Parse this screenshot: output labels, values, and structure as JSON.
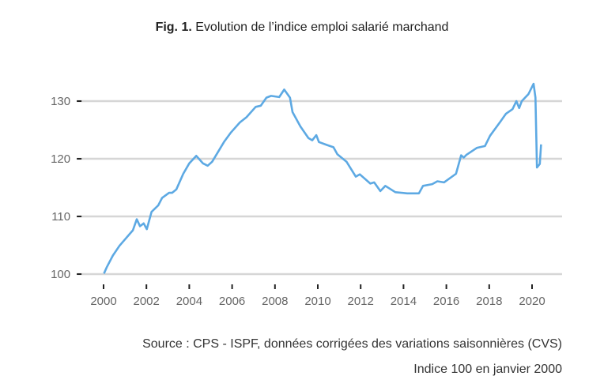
{
  "title": {
    "prefix": "Fig. 1.",
    "text": " Evolution de l’indice emploi salarié marchand"
  },
  "source": "Source : CPS - ISPF, données corrigées des variations saisonnières (CVS)",
  "note": "Indice 100 en janvier 2000",
  "chart_data": {
    "type": "line",
    "title": "Evolution de l’indice emploi salarié marchand",
    "xlabel": "",
    "ylabel": "",
    "xlim": [
      1998.75,
      2021.4
    ],
    "ylim": [
      100,
      134
    ],
    "grid": true,
    "line_color": "#5DA9E3",
    "x_ticks": [
      "2000",
      "2002",
      "2004",
      "2006",
      "2008",
      "2010",
      "2012",
      "2014",
      "2016",
      "2018",
      "2020"
    ],
    "y_ticks": [
      "100",
      "110",
      "120",
      "130"
    ],
    "series": [
      {
        "x": [
          2000.02,
          2000.15,
          2000.43,
          2000.74,
          2000.95,
          2001.37,
          2001.55,
          2001.7,
          2001.87,
          2002.02,
          2002.24,
          2002.55,
          2002.73,
          2003.06,
          2003.2,
          2003.4,
          2003.72,
          2004.0,
          2004.33,
          2004.64,
          2004.86,
          2005.07,
          2005.62,
          2005.93,
          2006.36,
          2006.67,
          2007.1,
          2007.34,
          2007.6,
          2007.82,
          2008.2,
          2008.43,
          2008.7,
          2008.82,
          2009.19,
          2009.56,
          2009.74,
          2009.93,
          2010.05,
          2010.42,
          2010.73,
          2010.91,
          2011.34,
          2011.77,
          2011.96,
          2012.45,
          2012.63,
          2012.92,
          2013.15,
          2013.62,
          2014.17,
          2014.72,
          2014.91,
          2015.34,
          2015.58,
          2015.89,
          2016.45,
          2016.69,
          2016.81,
          2016.94,
          2017.43,
          2017.8,
          2018.04,
          2018.53,
          2018.78,
          2019.09,
          2019.27,
          2019.4,
          2019.52,
          2019.83,
          2020.07,
          2020.16,
          2020.23,
          2020.36,
          2020.42
        ],
        "y": [
          100.1,
          101.2,
          103.2,
          104.9,
          105.8,
          107.6,
          109.5,
          108.3,
          108.8,
          107.8,
          110.8,
          111.9,
          113.2,
          114.1,
          114.1,
          114.7,
          117.4,
          119.2,
          120.5,
          119.2,
          118.8,
          119.5,
          122.9,
          124.5,
          126.3,
          127.2,
          129.0,
          129.2,
          130.6,
          130.9,
          130.7,
          132.0,
          130.6,
          128.1,
          125.6,
          123.6,
          123.2,
          124.1,
          122.9,
          122.4,
          122.0,
          120.8,
          119.5,
          116.9,
          117.3,
          115.7,
          115.9,
          114.4,
          115.3,
          114.2,
          114.0,
          114.0,
          115.3,
          115.6,
          116.1,
          115.9,
          117.4,
          120.6,
          120.2,
          120.7,
          121.9,
          122.2,
          124.0,
          126.5,
          127.8,
          128.6,
          130.0,
          128.8,
          130.0,
          131.2,
          133.0,
          130.6,
          118.5,
          119.1,
          122.5
        ]
      }
    ]
  }
}
